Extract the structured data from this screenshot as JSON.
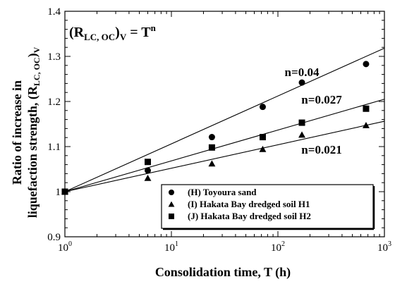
{
  "chart_data": {
    "type": "scatter",
    "x_scale": "log",
    "xlim": [
      1,
      1000
    ],
    "ylim": [
      0.9,
      1.4
    ],
    "x_ticks": [
      {
        "base": "10",
        "exp": "0",
        "value": 1
      },
      {
        "base": "10",
        "exp": "1",
        "value": 10
      },
      {
        "base": "10",
        "exp": "2",
        "value": 100
      },
      {
        "base": "10",
        "exp": "3",
        "value": 1000
      }
    ],
    "y_ticks": [
      {
        "label": "0.9",
        "value": 0.9
      },
      {
        "label": "1",
        "value": 1.0
      },
      {
        "label": "1.1",
        "value": 1.1
      },
      {
        "label": "1.2",
        "value": 1.2
      },
      {
        "label": "1.3",
        "value": 1.3
      },
      {
        "label": "1.4",
        "value": 1.4
      }
    ],
    "xlabel": "Consolidation time, T (h)",
    "ylabel_line1": "Ratio of increase in",
    "ylabel_line2": "liquefaction strength, (R",
    "ylabel_line2_sub": "LC, OC",
    "ylabel_line2_tail": ")",
    "ylabel_line2_sub2": "V",
    "formula": {
      "lhs": "(R",
      "sub": "LC, OC",
      "close": ")",
      "sub2": "V",
      "eq": " = T",
      "sup": "n"
    },
    "series": [
      {
        "name": "(H) Toyoura sand",
        "marker": "circle",
        "n_label": "n=0.04",
        "n": 0.04,
        "x": [
          1,
          6,
          24,
          72,
          168,
          672
        ],
        "y": [
          1.0,
          1.047,
          1.121,
          1.188,
          1.242,
          1.283
        ]
      },
      {
        "name": "(I)  Hakata Bay dredged soil H1",
        "marker": "triangle",
        "n_label": "n=0.021",
        "n": 0.021,
        "x": [
          1,
          6,
          24,
          72,
          168,
          672
        ],
        "y": [
          1.0,
          1.03,
          1.062,
          1.094,
          1.126,
          1.147
        ]
      },
      {
        "name": "(J) Hakata Bay dredged soil H2",
        "marker": "square",
        "n_label": "n=0.027",
        "n": 0.027,
        "x": [
          1,
          6,
          24,
          72,
          168,
          672
        ],
        "y": [
          1.0,
          1.066,
          1.098,
          1.121,
          1.153,
          1.184
        ]
      }
    ],
    "legend_placement": "bottom-right",
    "grid": false
  }
}
